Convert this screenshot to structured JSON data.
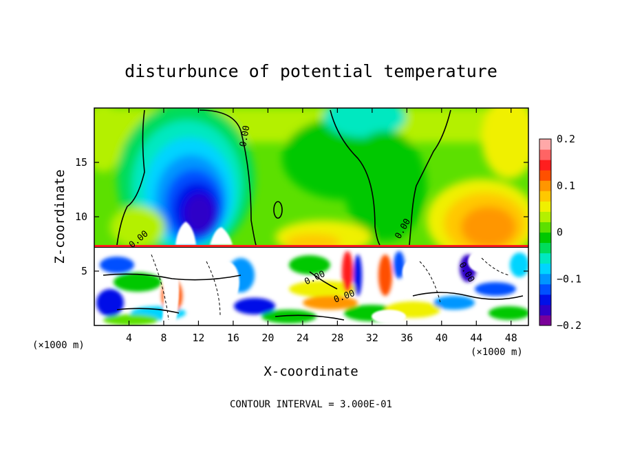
{
  "chart_data": {
    "type": "heatmap",
    "title": "disturbunce of potential temperature",
    "xlabel": "X-coordinate",
    "ylabel": "Z-coordinate",
    "x_unit_label": "(×1000 m)",
    "z_unit_label": "(×1000 m)",
    "xlim": [
      0,
      50
    ],
    "ylim": [
      0,
      20
    ],
    "x_ticks": [
      4,
      8,
      12,
      16,
      20,
      24,
      28,
      32,
      36,
      40,
      44,
      48
    ],
    "y_ticks": [
      5,
      10,
      15
    ],
    "colorbar": {
      "min": -0.2,
      "max": 0.2,
      "tick_values": [
        0.2,
        0.1,
        0,
        -0.1,
        -0.2
      ],
      "tick_labels": [
        "0.2",
        "0.1",
        "0",
        "−0.1",
        "−0.2"
      ],
      "colors": [
        "#7a0099",
        "#2f00c8",
        "#0010e8",
        "#0050ff",
        "#0096ff",
        "#00d4ff",
        "#00e8c0",
        "#00dc5c",
        "#00c800",
        "#5ce000",
        "#b4f000",
        "#f0f000",
        "#ffc800",
        "#ff9600",
        "#ff5000",
        "#ff1e1e",
        "#ff6464",
        "#ffa8a8"
      ]
    },
    "contour_labels": [
      "0.00",
      "0.00",
      "0.00",
      "0.00",
      "0.00",
      "0.00"
    ],
    "contour_interval_text": "CONTOUR INTERVAL = 3.000E-01"
  }
}
